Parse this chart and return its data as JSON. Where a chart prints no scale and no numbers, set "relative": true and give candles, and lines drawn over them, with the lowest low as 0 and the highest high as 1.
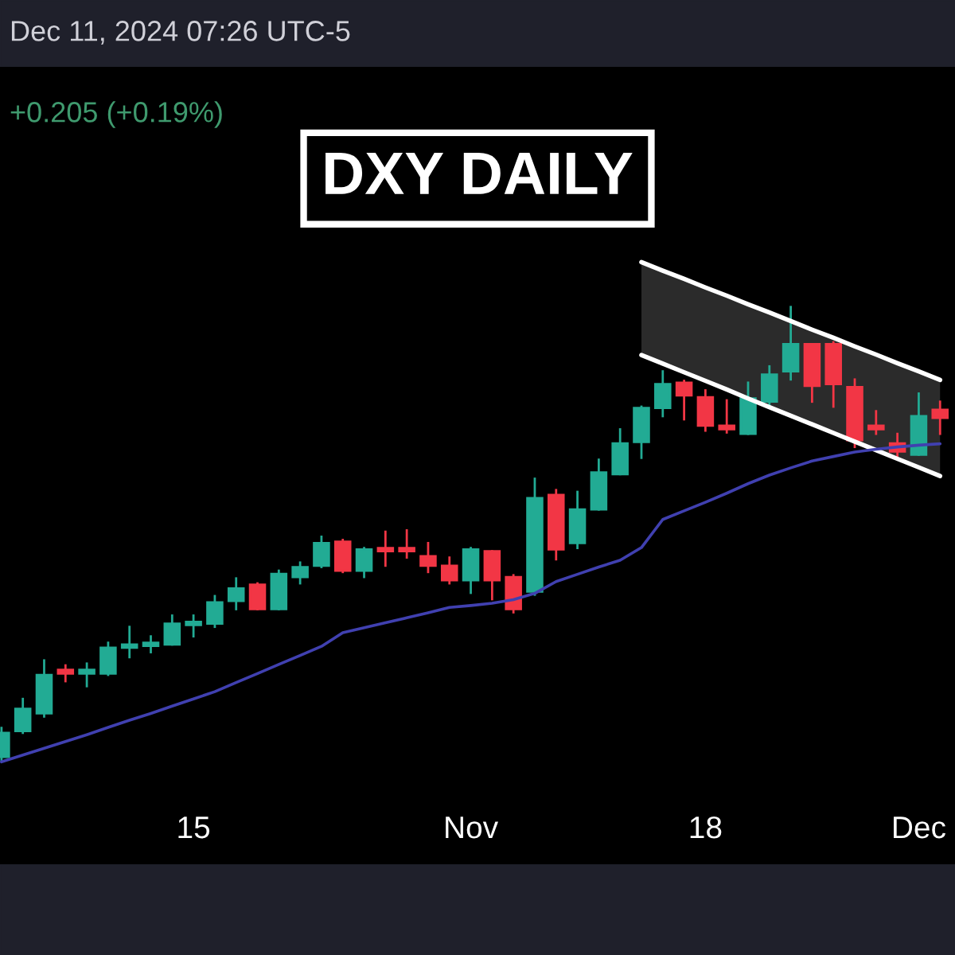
{
  "chart_data": {
    "type": "candlestick",
    "title": "DXY DAILY",
    "relative": true,
    "annotations": [
      "Dec 11, 2024 07:26 UTC-5",
      "+0.205 (+0.19%)"
    ],
    "categories": [
      null,
      null,
      null,
      null,
      null,
      null,
      null,
      null,
      null,
      "15",
      null,
      null,
      null,
      null,
      null,
      null,
      null,
      null,
      null,
      null,
      null,
      null,
      "Nov",
      null,
      null,
      null,
      null,
      null,
      null,
      null,
      null,
      null,
      null,
      "18",
      null,
      null,
      null,
      null,
      null,
      null,
      null,
      null,
      null,
      "Dec",
      null
    ],
    "tick_labels": "x",
    "grid": false,
    "ohlc": [
      [
        0.007,
        0.071,
        0,
        0.06
      ],
      [
        0.064,
        0.135,
        0.06,
        0.113
      ],
      [
        0.103,
        0.22,
        0.096,
        0.188
      ],
      [
        0.199,
        0.209,
        0.174,
        0.191
      ],
      [
        0.191,
        0.213,
        0.163,
        0.199
      ],
      [
        0.191,
        0.259,
        0.188,
        0.248
      ],
      [
        0.248,
        0.294,
        0.227,
        0.255
      ],
      [
        0.252,
        0.273,
        0.238,
        0.259
      ],
      [
        0.255,
        0.319,
        0.255,
        0.301
      ],
      [
        0.298,
        0.319,
        0.273,
        0.305
      ],
      [
        0.301,
        0.362,
        0.294,
        0.348
      ],
      [
        0.351,
        0.401,
        0.333,
        0.379
      ],
      [
        0.387,
        0.39,
        0.333,
        0.333
      ],
      [
        0.333,
        0.418,
        0.333,
        0.411
      ],
      [
        0.404,
        0.436,
        0.39,
        0.426
      ],
      [
        0.429,
        0.493,
        0.426,
        0.479
      ],
      [
        0.482,
        0.486,
        0.415,
        0.418
      ],
      [
        0.418,
        0.468,
        0.404,
        0.465
      ],
      [
        0.468,
        0.504,
        0.429,
        0.461
      ],
      [
        0.468,
        0.507,
        0.447,
        0.461
      ],
      [
        0.45,
        0.479,
        0.415,
        0.429
      ],
      [
        0.429,
        0.447,
        0.39,
        0.397
      ],
      [
        0.397,
        0.468,
        0.369,
        0.465
      ],
      [
        0.461,
        0.461,
        0.355,
        0.397
      ],
      [
        0.404,
        0.408,
        0.326,
        0.333
      ],
      [
        0.372,
        0.621,
        0.365,
        0.578
      ],
      [
        0.585,
        0.596,
        0.443,
        0.465
      ],
      [
        0.479,
        0.592,
        0.468,
        0.553
      ],
      [
        0.553,
        0.663,
        0.553,
        0.635
      ],
      [
        0.631,
        0.73,
        0.631,
        0.699
      ],
      [
        0.702,
        0.78,
        0.667,
        0.777
      ],
      [
        0.777,
        0.858,
        0.759,
        0.83
      ],
      [
        0.833,
        0.837,
        0.752,
        0.805
      ],
      [
        0.801,
        0.816,
        0.727,
        0.738
      ],
      [
        0.738,
        0.794,
        0.723,
        0.73
      ],
      [
        0.72,
        0.833,
        0.72,
        0.798
      ],
      [
        0.791,
        0.869,
        0.78,
        0.851
      ],
      [
        0.858,
        1,
        0.84,
        0.918
      ],
      [
        0.918,
        0.918,
        0.791,
        0.826
      ],
      [
        0.918,
        0.922,
        0.78,
        0.83
      ],
      [
        0.823,
        0.84,
        0.691,
        0.706
      ],
      [
        0.738,
        0.77,
        0.72,
        0.73
      ],
      [
        0.699,
        0.72,
        0.667,
        0.681
      ],
      [
        0.674,
        0.809,
        0.674,
        0.759
      ],
      [
        0.773,
        0.791,
        0.72,
        0.755
      ]
    ],
    "colors": [
      "#22ab94",
      "#22ab94",
      "#22ab94",
      "#f23645",
      "#22ab94",
      "#22ab94",
      "#22ab94",
      "#22ab94",
      "#22ab94",
      "#22ab94",
      "#22ab94",
      "#22ab94",
      "#f23645",
      "#22ab94",
      "#22ab94",
      "#22ab94",
      "#f23645",
      "#22ab94",
      "#f23645",
      "#f23645",
      "#f23645",
      "#f23645",
      "#22ab94",
      "#f23645",
      "#f23645",
      "#22ab94",
      "#f23645",
      "#22ab94",
      "#22ab94",
      "#22ab94",
      "#22ab94",
      "#22ab94",
      "#f23645",
      "#f23645",
      "#f23645",
      "#22ab94",
      "#22ab94",
      "#22ab94",
      "#f23645",
      "#f23645",
      "#f23645",
      "#f23645",
      "#f23645",
      "#22ab94",
      "#f23645"
    ],
    "series": [
      {
        "type": "line",
        "color": "#ffffff",
        "values": [
          null,
          null,
          null,
          null,
          null,
          null,
          null,
          null,
          null,
          null,
          null,
          null,
          null,
          null,
          null,
          null,
          null,
          null,
          null,
          null,
          null,
          null,
          null,
          null,
          null,
          null,
          null,
          null,
          null,
          null,
          1.099,
          1.08,
          1.062,
          1.043,
          1.025,
          1.006,
          0.988,
          0.969,
          0.95,
          0.932,
          0.913,
          0.895,
          0.876,
          0.858,
          0.839
        ],
        "upper": [
          null,
          null,
          null,
          null,
          null,
          null,
          null,
          null,
          null,
          null,
          null,
          null,
          null,
          null,
          null,
          null,
          null,
          null,
          null,
          null,
          null,
          null,
          null,
          null,
          null,
          null,
          null,
          null,
          null,
          null,
          1.099,
          1.08,
          1.062,
          1.043,
          1.025,
          1.006,
          0.988,
          0.969,
          0.95,
          0.932,
          0.913,
          0.895,
          0.876,
          0.858,
          0.839
        ],
        "lower": [
          null,
          null,
          null,
          null,
          null,
          null,
          null,
          null,
          null,
          null,
          null,
          null,
          null,
          null,
          null,
          null,
          null,
          null,
          null,
          null,
          null,
          null,
          null,
          null,
          null,
          null,
          null,
          null,
          null,
          null,
          0.894,
          0.875,
          0.856,
          0.837,
          0.818,
          0.798,
          0.779,
          0.76,
          0.741,
          0.722,
          0.703,
          0.684,
          0.665,
          0.646,
          0.627
        ]
      },
      {
        "type": "line",
        "color": "#ffffff",
        "values": [
          null,
          null,
          null,
          null,
          null,
          null,
          null,
          null,
          null,
          null,
          null,
          null,
          null,
          null,
          null,
          null,
          null,
          null,
          null,
          null,
          null,
          null,
          null,
          null,
          null,
          null,
          null,
          null,
          null,
          null,
          0.894,
          0.875,
          0.856,
          0.837,
          0.818,
          0.798,
          0.779,
          0.76,
          0.741,
          0.722,
          0.703,
          0.684,
          0.665,
          0.646,
          0.627
        ]
      },
      {
        "type": "line",
        "color": "#4040b0",
        "values": [
          -0.004,
          0.011,
          0.026,
          0.041,
          0.056,
          0.072,
          0.088,
          0.103,
          0.119,
          0.135,
          0.151,
          0.171,
          0.191,
          0.211,
          0.231,
          0.251,
          0.281,
          0.292,
          0.303,
          0.314,
          0.325,
          0.337,
          0.341,
          0.346,
          0.354,
          0.368,
          0.394,
          0.41,
          0.426,
          0.441,
          0.469,
          0.531,
          0.55,
          0.569,
          0.589,
          0.61,
          0.629,
          0.645,
          0.66,
          0.67,
          0.68,
          0.686,
          0.691,
          0.695,
          0.698
        ]
      }
    ]
  }
}
